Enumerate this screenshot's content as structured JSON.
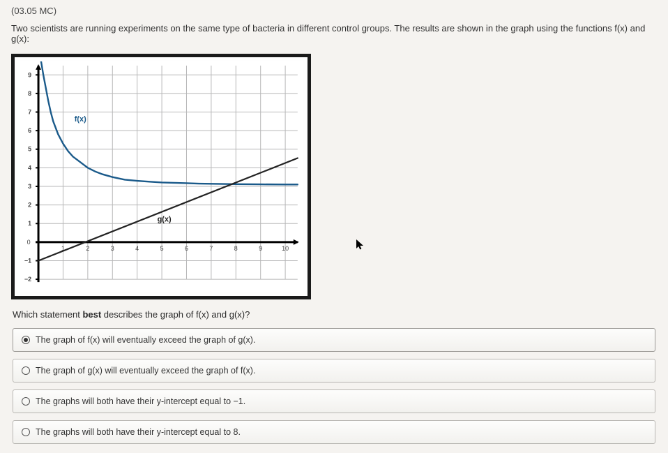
{
  "question_code": "(03.05 MC)",
  "prompt_text": "Two scientists are running experiments on the same type of bacteria in different control groups. The results are shown in the graph using the functions f(x) and g(x):",
  "subprompt_prefix": "Which statement ",
  "subprompt_bold": "best",
  "subprompt_suffix": " describes the graph of f(x) and g(x)?",
  "options": [
    {
      "label": "The graph of f(x) will eventually exceed the graph of g(x).",
      "selected": true
    },
    {
      "label": "The graph of g(x) will eventually exceed the graph of f(x).",
      "selected": false
    },
    {
      "label": "The graphs will both have their y-intercept equal to −1.",
      "selected": false
    },
    {
      "label": "The graphs will both have their y-intercept equal to 8.",
      "selected": false
    }
  ],
  "graph": {
    "type": "line",
    "xlim": [
      0,
      10.5
    ],
    "ylim": [
      -2,
      9.5
    ],
    "xtick_step": 1,
    "ytick_step": 1,
    "background_color": "#ffffff",
    "grid_color": "#b7b7b8",
    "axis_color": "#000000",
    "axis_width": 3,
    "grid_width": 1,
    "tick_label_fontsize": 9,
    "tick_label_color": "#444",
    "x_ticks": [
      "1",
      "2",
      "3",
      "4",
      "5",
      "6",
      "7",
      "8",
      "9",
      "10"
    ],
    "y_ticks": [
      {
        "v": -2,
        "label": "−2"
      },
      {
        "v": -1,
        "label": "−1"
      },
      {
        "v": 0,
        "label": "0"
      },
      {
        "v": 1,
        "label": "1"
      },
      {
        "v": 2,
        "label": "2"
      },
      {
        "v": 3,
        "label": "3"
      },
      {
        "v": 4,
        "label": "4"
      },
      {
        "v": 5,
        "label": "5"
      },
      {
        "v": 6,
        "label": "6"
      },
      {
        "v": 7,
        "label": "7"
      },
      {
        "v": 8,
        "label": "8"
      },
      {
        "v": 9,
        "label": "9"
      }
    ],
    "series": [
      {
        "name": "f(x)",
        "color": "#1a5a8a",
        "width": 2.4,
        "label_pos": [
          1.7,
          6.5
        ],
        "label_fontsize": 11,
        "label_weight": "bold",
        "points": [
          [
            0.0,
            10.7
          ],
          [
            0.1,
            9.8
          ],
          [
            0.2,
            9.0
          ],
          [
            0.3,
            8.3
          ],
          [
            0.4,
            7.6
          ],
          [
            0.5,
            7.0
          ],
          [
            0.6,
            6.5
          ],
          [
            0.8,
            5.8
          ],
          [
            1.0,
            5.3
          ],
          [
            1.2,
            4.9
          ],
          [
            1.4,
            4.6
          ],
          [
            1.6,
            4.4
          ],
          [
            1.8,
            4.2
          ],
          [
            2.0,
            4.0
          ],
          [
            2.3,
            3.8
          ],
          [
            2.6,
            3.65
          ],
          [
            3.0,
            3.5
          ],
          [
            3.5,
            3.36
          ],
          [
            4.0,
            3.3
          ],
          [
            4.5,
            3.25
          ],
          [
            5.0,
            3.21
          ],
          [
            5.5,
            3.19
          ],
          [
            6.0,
            3.17
          ],
          [
            6.5,
            3.15
          ],
          [
            7.0,
            3.14
          ],
          [
            8.0,
            3.12
          ],
          [
            9.0,
            3.11
          ],
          [
            10.0,
            3.1
          ],
          [
            10.5,
            3.1
          ]
        ]
      },
      {
        "name": "g(x)",
        "color": "#222222",
        "width": 2.2,
        "label_pos": [
          5.1,
          1.1
        ],
        "label_fontsize": 11,
        "label_weight": "bold",
        "points": [
          [
            0.0,
            -1.0
          ],
          [
            10.5,
            4.52
          ]
        ]
      }
    ]
  }
}
